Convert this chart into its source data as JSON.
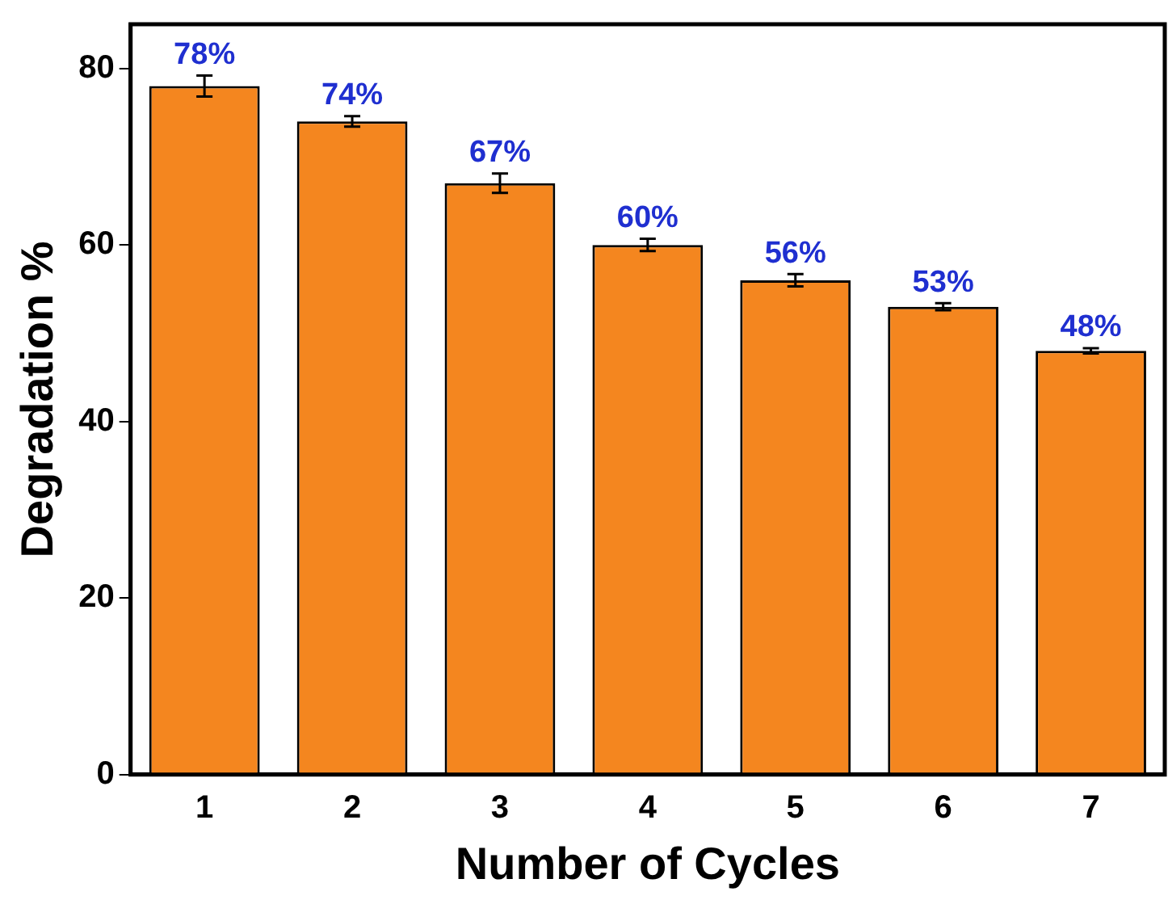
{
  "chart_data": {
    "type": "bar",
    "xlabel": "Number of Cycles",
    "ylabel": "Degradation %",
    "categories": [
      "1",
      "2",
      "3",
      "4",
      "5",
      "6",
      "7"
    ],
    "values": [
      78,
      74,
      67,
      60,
      56,
      53,
      48
    ],
    "errors": [
      1.2,
      0.6,
      1.1,
      0.7,
      0.7,
      0.4,
      0.3
    ],
    "value_labels": [
      "78%",
      "74%",
      "67%",
      "60%",
      "56%",
      "53%",
      "48%"
    ],
    "color": "#f4861f",
    "ylim": [
      0,
      85
    ],
    "yticks": [
      0,
      20,
      40,
      60,
      80
    ],
    "grid": false,
    "legend": false
  }
}
